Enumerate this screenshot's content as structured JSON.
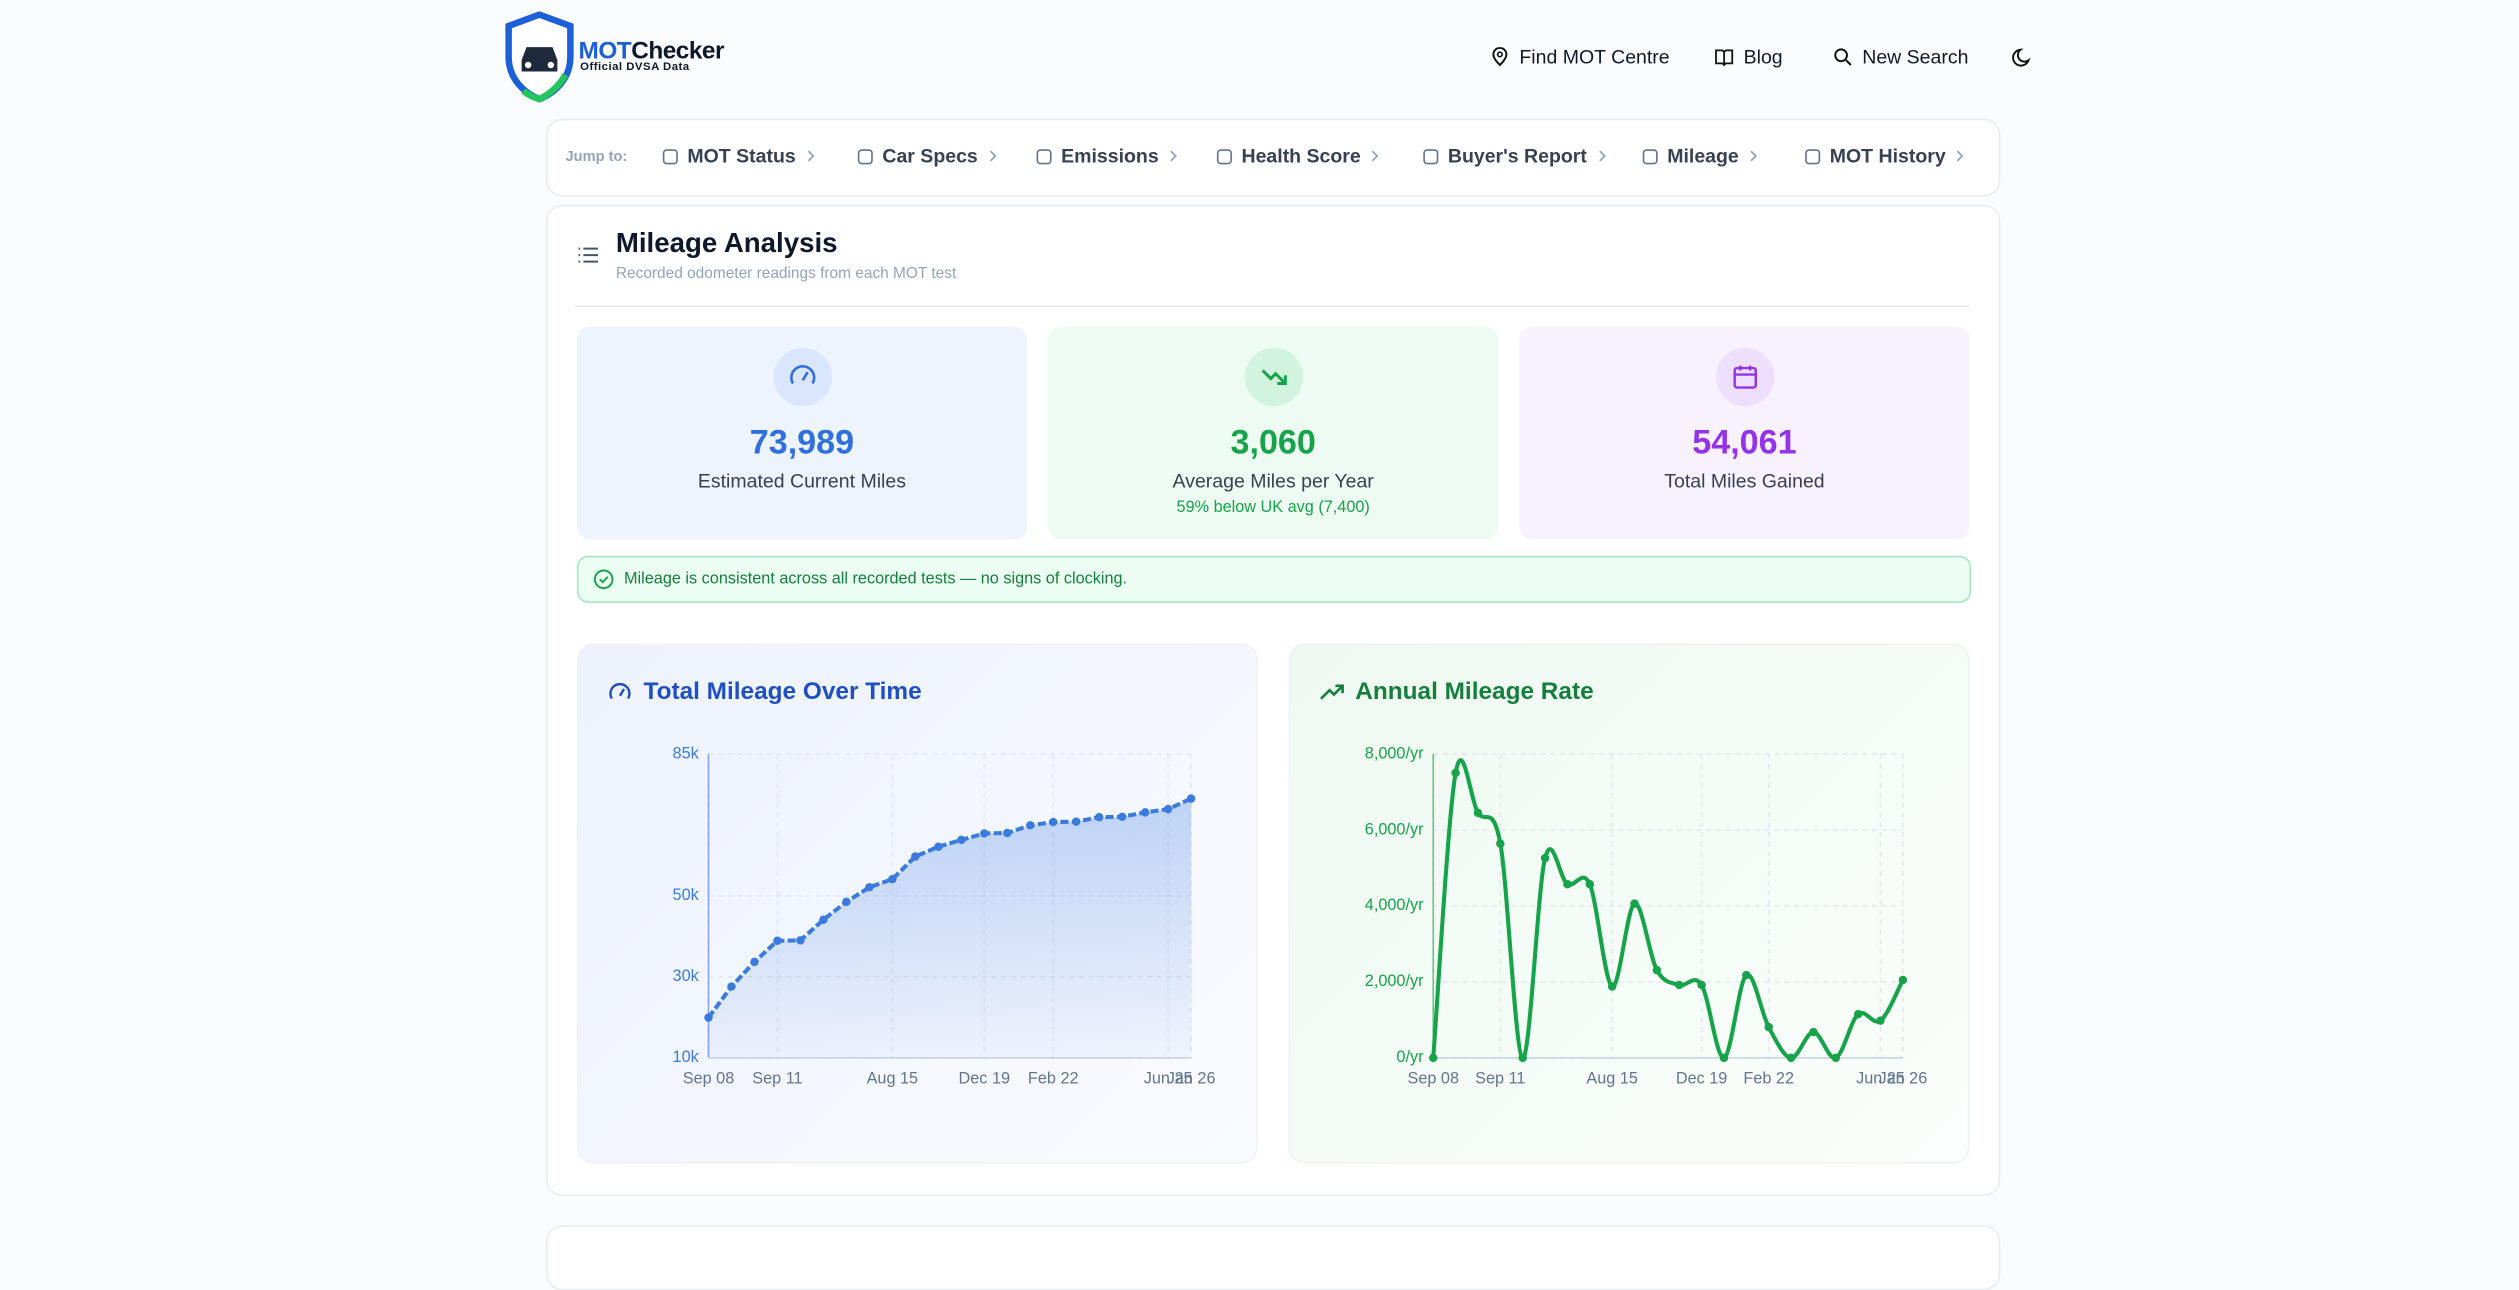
{
  "header": {
    "brand_prefix": "MOT",
    "brand_suffix": "Checker",
    "tagline": "Official DVSA Data",
    "nav": [
      "Find MOT Centre",
      "Blog",
      "New Search"
    ]
  },
  "jump_bar": {
    "label": "Jump to:",
    "links": [
      "MOT Status",
      "Car Specs",
      "Emissions",
      "Health Score",
      "Buyer's Report",
      "Mileage",
      "MOT History"
    ]
  },
  "section": {
    "title": "Mileage Analysis",
    "subtitle": "Recorded odometer readings from each MOT test",
    "stats": [
      {
        "value": "73,989",
        "label": "Estimated Current Miles"
      },
      {
        "value": "3,060",
        "label": "Average Miles per Year",
        "note": "59% below UK avg (7,400)"
      },
      {
        "value": "54,061",
        "label": "Total Miles Gained"
      }
    ],
    "alert": "Mileage is consistent across all recorded tests — no signs of clocking."
  },
  "charts": [
    {
      "type": "area",
      "title": "Total Mileage Over Time",
      "color": "#3b7be0",
      "categories": [
        "Sep 08",
        null,
        null,
        "Sep 11",
        null,
        null,
        null,
        null,
        "Aug 15",
        null,
        null,
        null,
        "Dec 19",
        null,
        null,
        "Feb 22",
        null,
        null,
        null,
        null,
        "Jun 25",
        "Jan 26"
      ],
      "values": [
        19928,
        27600,
        33700,
        38900,
        39000,
        44100,
        48500,
        52100,
        54100,
        59700,
        62100,
        63800,
        65400,
        65500,
        67400,
        68200,
        68300,
        69400,
        69500,
        70600,
        71400,
        73989
      ],
      "ylim": [
        10000,
        85000
      ],
      "yticks": [
        {
          "value": 10000,
          "label": "10k"
        },
        {
          "value": 30000,
          "label": "30k"
        },
        {
          "value": 50000,
          "label": "50k"
        },
        {
          "value": 85000,
          "label": "85k"
        }
      ],
      "grid": true
    },
    {
      "type": "line",
      "title": "Annual Mileage Rate",
      "color": "#16a34a",
      "categories": [
        "Sep 08",
        null,
        null,
        "Sep 11",
        null,
        null,
        null,
        null,
        "Aug 15",
        null,
        null,
        null,
        "Dec 19",
        null,
        null,
        "Feb 22",
        null,
        null,
        null,
        null,
        "Jun 25",
        "Jan 26"
      ],
      "values": [
        0,
        7500,
        6450,
        5640,
        0,
        5260,
        4570,
        4570,
        1880,
        4060,
        2310,
        1920,
        1920,
        0,
        2180,
        810,
        0,
        680,
        0,
        1150,
        980,
        2050
      ],
      "ylim": [
        0,
        8000
      ],
      "yticks": [
        {
          "value": 0,
          "label": "0/yr"
        },
        {
          "value": 2000,
          "label": "2,000/yr"
        },
        {
          "value": 4000,
          "label": "4,000/yr"
        },
        {
          "value": 6000,
          "label": "6,000/yr"
        },
        {
          "value": 8000,
          "label": "8,000/yr"
        }
      ],
      "grid": true
    }
  ]
}
